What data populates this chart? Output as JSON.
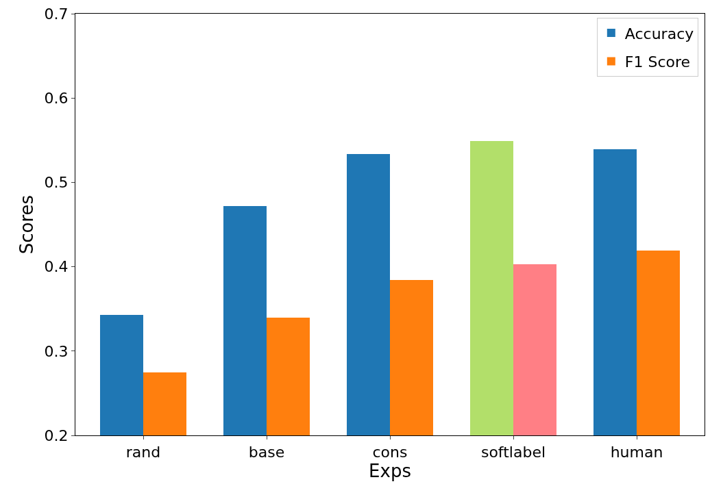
{
  "chart_data": {
    "type": "bar",
    "xlabel": "Exps",
    "ylabel": "Scores",
    "categories": [
      "rand",
      "base",
      "cons",
      "softlabel",
      "human"
    ],
    "series": [
      {
        "name": "Accuracy",
        "colors": [
          "#1f77b4",
          "#1f77b4",
          "#1f77b4",
          "#b2df6a",
          "#1f77b4"
        ],
        "values": [
          0.343,
          0.472,
          0.534,
          0.549,
          0.539
        ]
      },
      {
        "name": "F1 Score",
        "colors": [
          "#ff7f0e",
          "#ff7f0e",
          "#ff7f0e",
          "#ff7f85",
          "#ff7f0e"
        ],
        "values": [
          0.275,
          0.34,
          0.384,
          0.403,
          0.419
        ]
      }
    ],
    "ylim": [
      0.2,
      0.7
    ],
    "yticks": [
      0.2,
      0.3,
      0.4,
      0.5,
      0.6,
      0.7
    ],
    "legend": "top right"
  }
}
